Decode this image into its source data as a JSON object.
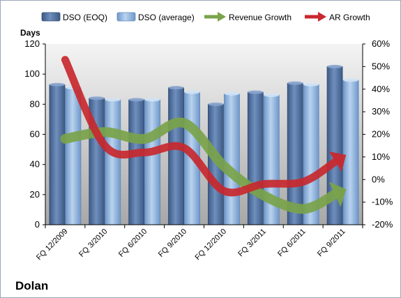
{
  "company": "Dolan",
  "chart_data": {
    "type": "bar",
    "categories": [
      "FQ 12/2009",
      "FQ 3/2010",
      "FQ 6/2010",
      "FQ 9/2010",
      "FQ 12/2010",
      "FQ 3/2011",
      "FQ 6/2011",
      "FQ 9/2011"
    ],
    "y_left_label": "Days",
    "y_left_range": [
      0,
      120
    ],
    "y_left_ticks": [
      "0",
      "20",
      "40",
      "60",
      "80",
      "100",
      "120"
    ],
    "y_right_range": [
      -20,
      60
    ],
    "y_right_ticks": [
      "-20%",
      "-10%",
      "0%",
      "10%",
      "20%",
      "30%",
      "40%",
      "50%",
      "60%"
    ],
    "legend_position": "top",
    "grid": false,
    "series": [
      {
        "name": "DSO (EOQ)",
        "type": "bar",
        "axis": "left",
        "color": "#4f6d9a",
        "values": [
          93,
          84,
          83,
          91,
          80,
          88,
          94,
          105
        ]
      },
      {
        "name": "DSO (average)",
        "type": "bar",
        "axis": "left",
        "color": "#8fb2dc",
        "values": [
          91,
          83,
          83,
          88,
          87,
          86,
          93,
          96
        ]
      },
      {
        "name": "Revenue Growth",
        "type": "arrow-line",
        "axis": "right",
        "color": "#7aa34a",
        "values": [
          18,
          21,
          18,
          25,
          6,
          -7,
          -13,
          -5
        ]
      },
      {
        "name": "AR Growth",
        "type": "arrow-line",
        "axis": "right",
        "color": "#c8282e",
        "values": [
          53,
          15,
          12,
          14,
          -5,
          -2,
          -1,
          10
        ]
      }
    ]
  }
}
